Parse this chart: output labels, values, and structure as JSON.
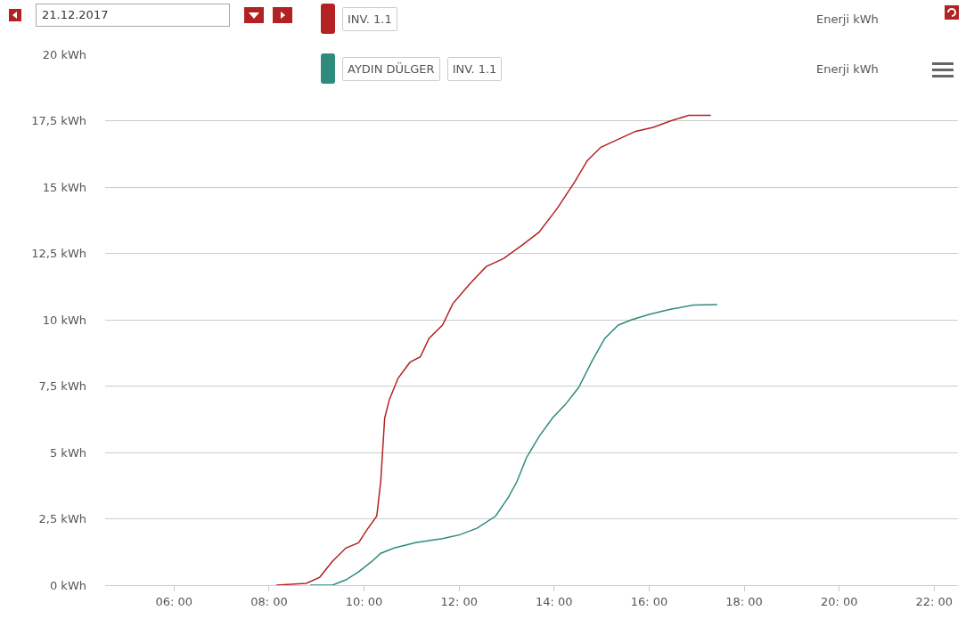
{
  "chart_data": {
    "type": "line",
    "annotations": [
      "21.12.2017",
      "INV. 1.1",
      "Enerji kWh",
      "INV. 1.1",
      "Enerji kWh"
    ],
    "series": [
      {
        "color": "#b22222",
        "x": [
          "2017-12-21T08:09",
          "2017-12-21T08:47",
          "2017-12-21T09:04",
          "2017-12-21T09:20",
          "2017-12-21T09:37",
          "2017-12-21T09:53",
          "2017-12-21T10:04",
          "2017-12-21T10:16",
          "2017-12-21T10:21",
          "2017-12-21T10:26",
          "2017-12-21T10:32",
          "2017-12-21T10:43",
          "2017-12-21T10:58",
          "2017-12-21T11:11",
          "2017-12-21T11:22",
          "2017-12-21T11:39",
          "2017-12-21T11:52",
          "2017-12-21T12:12",
          "2017-12-21T12:34",
          "2017-12-21T12:56",
          "2017-12-21T13:19",
          "2017-12-21T13:41",
          "2017-12-21T14:04",
          "2017-12-21T14:26",
          "2017-12-21T14:42",
          "2017-12-21T14:59",
          "2017-12-21T15:21",
          "2017-12-21T15:43",
          "2017-12-21T16:05",
          "2017-12-21T16:28",
          "2017-12-21T16:50",
          "2017-12-21T17:18"
        ],
        "values": [
          0,
          0.07,
          0.3,
          0.9,
          1.4,
          1.6,
          2.1,
          2.6,
          3.9,
          6.3,
          7,
          7.8,
          8.4,
          8.6,
          9.3,
          9.8,
          10.6,
          11.3,
          12,
          12.3,
          12.8,
          13.3,
          14.2,
          15.2,
          16,
          16.5,
          16.8,
          17.1,
          17.25,
          17.5,
          17.7,
          17.7
        ]
      },
      {
        "name": "AYDIN DÜLGER",
        "color": "#2e8b7e",
        "x": [
          "2017-12-21T08:52",
          "2017-12-21T09:20",
          "2017-12-21T09:37",
          "2017-12-21T09:53",
          "2017-12-21T10:10",
          "2017-12-21T10:21",
          "2017-12-21T10:38",
          "2017-12-21T11:05",
          "2017-12-21T11:39",
          "2017-12-21T12:01",
          "2017-12-21T12:23",
          "2017-12-21T12:46",
          "2017-12-21T13:02",
          "2017-12-21T13:13",
          "2017-12-21T13:25",
          "2017-12-21T13:41",
          "2017-12-21T13:58",
          "2017-12-21T14:14",
          "2017-12-21T14:31",
          "2017-12-21T14:48",
          "2017-12-21T15:04",
          "2017-12-21T15:21",
          "2017-12-21T15:38",
          "2017-12-21T16:00",
          "2017-12-21T16:28",
          "2017-12-21T16:56",
          "2017-12-21T17:26"
        ],
        "values": [
          0,
          0,
          0.2,
          0.5,
          0.9,
          1.2,
          1.4,
          1.6,
          1.75,
          1.9,
          2.15,
          2.6,
          3.3,
          3.9,
          4.8,
          5.6,
          6.3,
          6.8,
          7.45,
          8.45,
          9.3,
          9.8,
          10,
          10.2,
          10.4,
          10.55,
          10.57
        ]
      }
    ],
    "xlim": [
      "2017-12-21T04:33",
      "2017-12-21T22:30"
    ],
    "xticks": [
      {
        "value": "2017-12-21T06:00",
        "label": "06: 00"
      },
      {
        "value": "2017-12-21T08:00",
        "label": "08: 00"
      },
      {
        "value": "2017-12-21T10:00",
        "label": "10: 00"
      },
      {
        "value": "2017-12-21T12:00",
        "label": "12: 00"
      },
      {
        "value": "2017-12-21T14:00",
        "label": "14: 00"
      },
      {
        "value": "2017-12-21T16:00",
        "label": "16: 00"
      },
      {
        "value": "2017-12-21T18:00",
        "label": "18: 00"
      },
      {
        "value": "2017-12-21T20:00",
        "label": "20: 00"
      },
      {
        "value": "2017-12-21T22:00",
        "label": "22: 00"
      }
    ],
    "ylim": [
      0,
      20
    ],
    "yticks": [
      {
        "value": 0,
        "label": "0 kWh"
      },
      {
        "value": 2.5,
        "label": "2,5 kWh"
      },
      {
        "value": 5,
        "label": "5 kWh"
      },
      {
        "value": 7.5,
        "label": "7,5 kWh"
      },
      {
        "value": 10,
        "label": "10 kWh"
      },
      {
        "value": 12.5,
        "label": "12,5 kWh"
      },
      {
        "value": 15,
        "label": "15 kWh"
      },
      {
        "value": 17.5,
        "label": "17,5 kWh"
      },
      {
        "value": 20,
        "label": "20 kWh"
      }
    ],
    "grid": "y",
    "legend": "top",
    "marker": "none",
    "line_style": "solid"
  }
}
